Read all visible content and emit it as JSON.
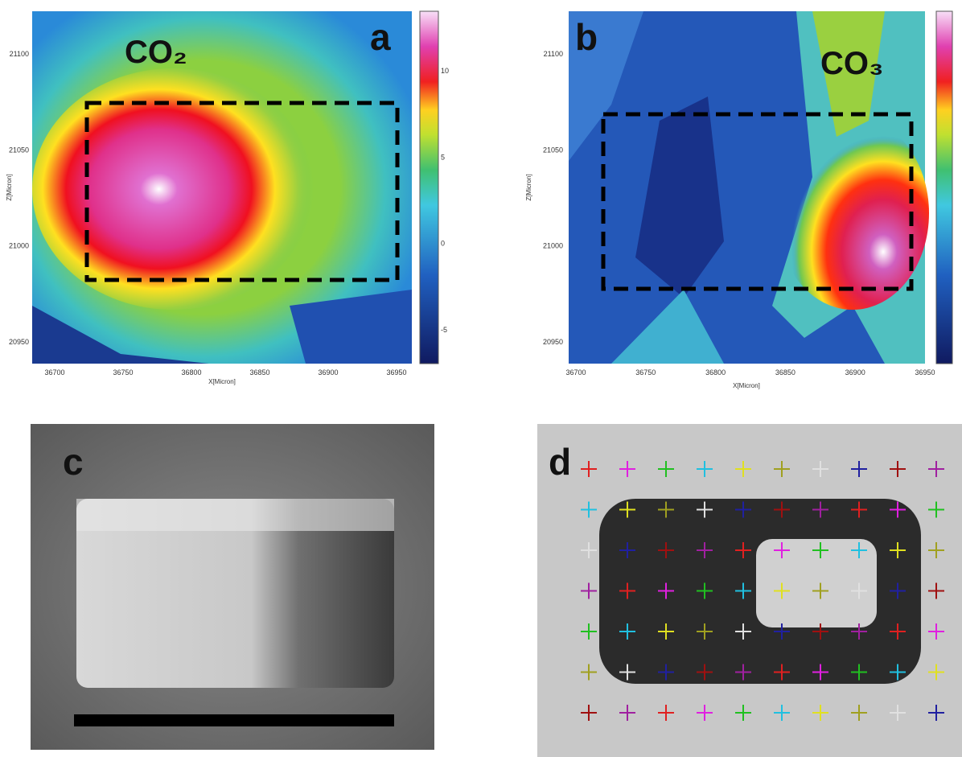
{
  "panels": [
    {
      "label": "a",
      "species": "CO₂",
      "x_axis_label": "X[Micron]",
      "y_axis_label": "Z[Micron]",
      "x_ticks": [
        36700,
        36750,
        36800,
        36850,
        36900,
        36950
      ],
      "y_ticks": [
        20950,
        21000,
        21050,
        21100
      ],
      "colorbar_ticks": [
        -5,
        0,
        5,
        10
      ]
    },
    {
      "label": "b",
      "species": "CO₃",
      "x_axis_label": "X[Micron]",
      "y_axis_label": "Z[Micron]",
      "x_ticks": [
        36700,
        36750,
        36800,
        36850,
        36900,
        36950
      ],
      "y_ticks": [
        20950,
        21000,
        21050,
        21100
      ]
    },
    {
      "label": "c"
    },
    {
      "label": "d"
    }
  ]
}
